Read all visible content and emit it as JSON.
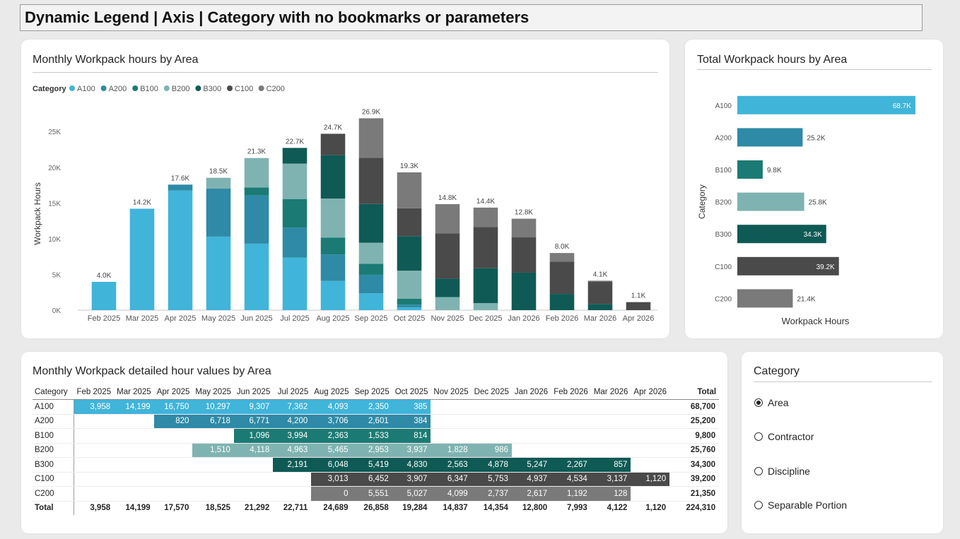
{
  "page": {
    "title": "Dynamic Legend | Axis | Category with no bookmarks or parameters",
    "more_options": "..."
  },
  "colors": {
    "A100": "#41b4d9",
    "A200": "#2e8aa6",
    "B100": "#1b7b74",
    "B200": "#7fb3b1",
    "B300": "#0f5a55",
    "C100": "#4a4a4a",
    "C200": "#7a7a7a"
  },
  "chart_data": [
    {
      "type": "bar",
      "stacked": true,
      "title": "Monthly Workpack hours by Area",
      "xlabel": "",
      "ylabel": "Workpack Hours",
      "legend_title": "Category",
      "legend_position": "top-left",
      "ylim": [
        0,
        27000
      ],
      "yticks": [
        0,
        5000,
        10000,
        15000,
        20000,
        25000
      ],
      "ytick_labels": [
        "0K",
        "5K",
        "10K",
        "15K",
        "20K",
        "25K"
      ],
      "categories": [
        "Feb 2025",
        "Mar 2025",
        "Apr 2025",
        "May 2025",
        "Jun 2025",
        "Jul 2025",
        "Aug 2025",
        "Sep 2025",
        "Oct 2025",
        "Nov 2025",
        "Dec 2025",
        "Jan 2026",
        "Feb 2026",
        "Mar 2026",
        "Apr 2026"
      ],
      "series": [
        {
          "name": "A100",
          "values": [
            3958,
            14199,
            16750,
            10297,
            9307,
            7362,
            4093,
            2350,
            385,
            0,
            0,
            0,
            0,
            0,
            0
          ]
        },
        {
          "name": "A200",
          "values": [
            0,
            0,
            820,
            6718,
            6771,
            4200,
            3706,
            2601,
            384,
            0,
            0,
            0,
            0,
            0,
            0
          ]
        },
        {
          "name": "B100",
          "values": [
            0,
            0,
            0,
            0,
            1096,
            3994,
            2363,
            1533,
            814,
            0,
            0,
            0,
            0,
            0,
            0
          ]
        },
        {
          "name": "B200",
          "values": [
            0,
            0,
            0,
            1510,
            4118,
            4963,
            5465,
            2953,
            3937,
            1828,
            986,
            0,
            0,
            0,
            0
          ]
        },
        {
          "name": "B300",
          "values": [
            0,
            0,
            0,
            0,
            0,
            2191,
            6048,
            5419,
            4830,
            2563,
            4878,
            5247,
            2267,
            857,
            0
          ]
        },
        {
          "name": "C100",
          "values": [
            0,
            0,
            0,
            0,
            0,
            0,
            3013,
            6452,
            3907,
            6347,
            5753,
            4937,
            4534,
            3137,
            1120
          ]
        },
        {
          "name": "C200",
          "values": [
            0,
            0,
            0,
            0,
            0,
            0,
            0,
            5551,
            5027,
            4099,
            2737,
            2617,
            1192,
            128,
            0
          ]
        }
      ],
      "total_labels": [
        "4.0K",
        "14.2K",
        "17.6K",
        "18.5K",
        "21.3K",
        "22.7K",
        "24.7K",
        "26.9K",
        "19.3K",
        "14.8K",
        "14.4K",
        "12.8K",
        "8.0K",
        "4.1K",
        "1.1K"
      ]
    },
    {
      "type": "bar",
      "orientation": "horizontal",
      "title": "Total Workpack hours by Area",
      "xlabel": "Workpack Hours",
      "ylabel": "Category",
      "xlim": [
        0,
        75000
      ],
      "categories": [
        "A100",
        "A200",
        "B100",
        "B200",
        "B300",
        "C100",
        "C200"
      ],
      "values": [
        68700,
        25200,
        9800,
        25800,
        34300,
        39200,
        21400
      ],
      "data_labels": [
        "68.7K",
        "25.2K",
        "9.8K",
        "25.8K",
        "34.3K",
        "39.2K",
        "21.4K"
      ]
    }
  ],
  "matrix": {
    "title": "Monthly Workpack detailed hour values by Area",
    "headers": [
      "Category",
      "Feb 2025",
      "Mar 2025",
      "Apr 2025",
      "May 2025",
      "Jun 2025",
      "Jul 2025",
      "Aug 2025",
      "Sep 2025",
      "Oct 2025",
      "Nov 2025",
      "Dec 2025",
      "Jan 2026",
      "Feb 2026",
      "Mar 2026",
      "Apr 2026",
      "Total"
    ],
    "rows": [
      {
        "label": "A100",
        "cells": [
          "3,958",
          "14,199",
          "16,750",
          "10,297",
          "9,307",
          "7,362",
          "4,093",
          "2,350",
          "385",
          "",
          "",
          "",
          "",
          "",
          ""
        ],
        "total": "68,700"
      },
      {
        "label": "A200",
        "cells": [
          "",
          "",
          "820",
          "6,718",
          "6,771",
          "4,200",
          "3,706",
          "2,601",
          "384",
          "",
          "",
          "",
          "",
          "",
          ""
        ],
        "total": "25,200"
      },
      {
        "label": "B100",
        "cells": [
          "",
          "",
          "",
          "",
          "1,096",
          "3,994",
          "2,363",
          "1,533",
          "814",
          "",
          "",
          "",
          "",
          "",
          ""
        ],
        "total": "9,800"
      },
      {
        "label": "B200",
        "cells": [
          "",
          "",
          "",
          "1,510",
          "4,118",
          "4,963",
          "5,465",
          "2,953",
          "3,937",
          "1,828",
          "986",
          "",
          "",
          "",
          ""
        ],
        "total": "25,760"
      },
      {
        "label": "B300",
        "cells": [
          "",
          "",
          "",
          "",
          "",
          "2,191",
          "6,048",
          "5,419",
          "4,830",
          "2,563",
          "4,878",
          "5,247",
          "2,267",
          "857",
          ""
        ],
        "total": "34,300"
      },
      {
        "label": "C100",
        "cells": [
          "",
          "",
          "",
          "",
          "",
          "",
          "3,013",
          "6,452",
          "3,907",
          "6,347",
          "5,753",
          "4,937",
          "4,534",
          "3,137",
          "1,120"
        ],
        "total": "39,200"
      },
      {
        "label": "C200",
        "cells": [
          "",
          "",
          "",
          "",
          "",
          "",
          "0",
          "5,551",
          "5,027",
          "4,099",
          "2,737",
          "2,617",
          "1,192",
          "128",
          ""
        ],
        "total": "21,350"
      }
    ],
    "total_row": {
      "label": "Total",
      "cells": [
        "3,958",
        "14,199",
        "17,570",
        "18,525",
        "21,292",
        "22,711",
        "24,689",
        "26,858",
        "19,284",
        "14,837",
        "14,354",
        "12,800",
        "7,993",
        "4,122",
        "1,120"
      ],
      "total": "224,310"
    }
  },
  "slicer": {
    "title": "Category",
    "options": [
      {
        "label": "Area",
        "selected": true
      },
      {
        "label": "Contractor",
        "selected": false
      },
      {
        "label": "Discipline",
        "selected": false
      },
      {
        "label": "Separable Portion",
        "selected": false
      }
    ]
  }
}
